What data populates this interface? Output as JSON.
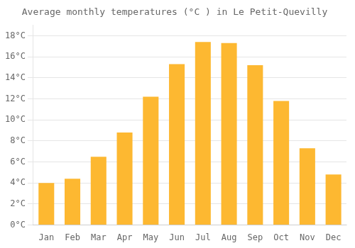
{
  "chart_data": {
    "type": "bar",
    "title": "Average monthly temperatures (°C ) in Le Petit-Quevilly",
    "categories": [
      "Jan",
      "Feb",
      "Mar",
      "Apr",
      "May",
      "Jun",
      "Jul",
      "Aug",
      "Sep",
      "Oct",
      "Nov",
      "Dec"
    ],
    "values": [
      4.0,
      4.4,
      6.5,
      8.8,
      12.2,
      15.3,
      17.4,
      17.3,
      15.2,
      11.8,
      7.3,
      4.8
    ],
    "color": "#FDB831",
    "ylim": [
      0,
      19
    ],
    "yticks": [
      {
        "value": 0,
        "label": "0°C"
      },
      {
        "value": 2,
        "label": "2°C"
      },
      {
        "value": 4,
        "label": "4°C"
      },
      {
        "value": 6,
        "label": "6°C"
      },
      {
        "value": 8,
        "label": "8°C"
      },
      {
        "value": 10,
        "label": "10°C"
      },
      {
        "value": 12,
        "label": "12°C"
      },
      {
        "value": 14,
        "label": "14°C"
      },
      {
        "value": 16,
        "label": "16°C"
      },
      {
        "value": 18,
        "label": "18°C"
      }
    ],
    "grid": true
  }
}
